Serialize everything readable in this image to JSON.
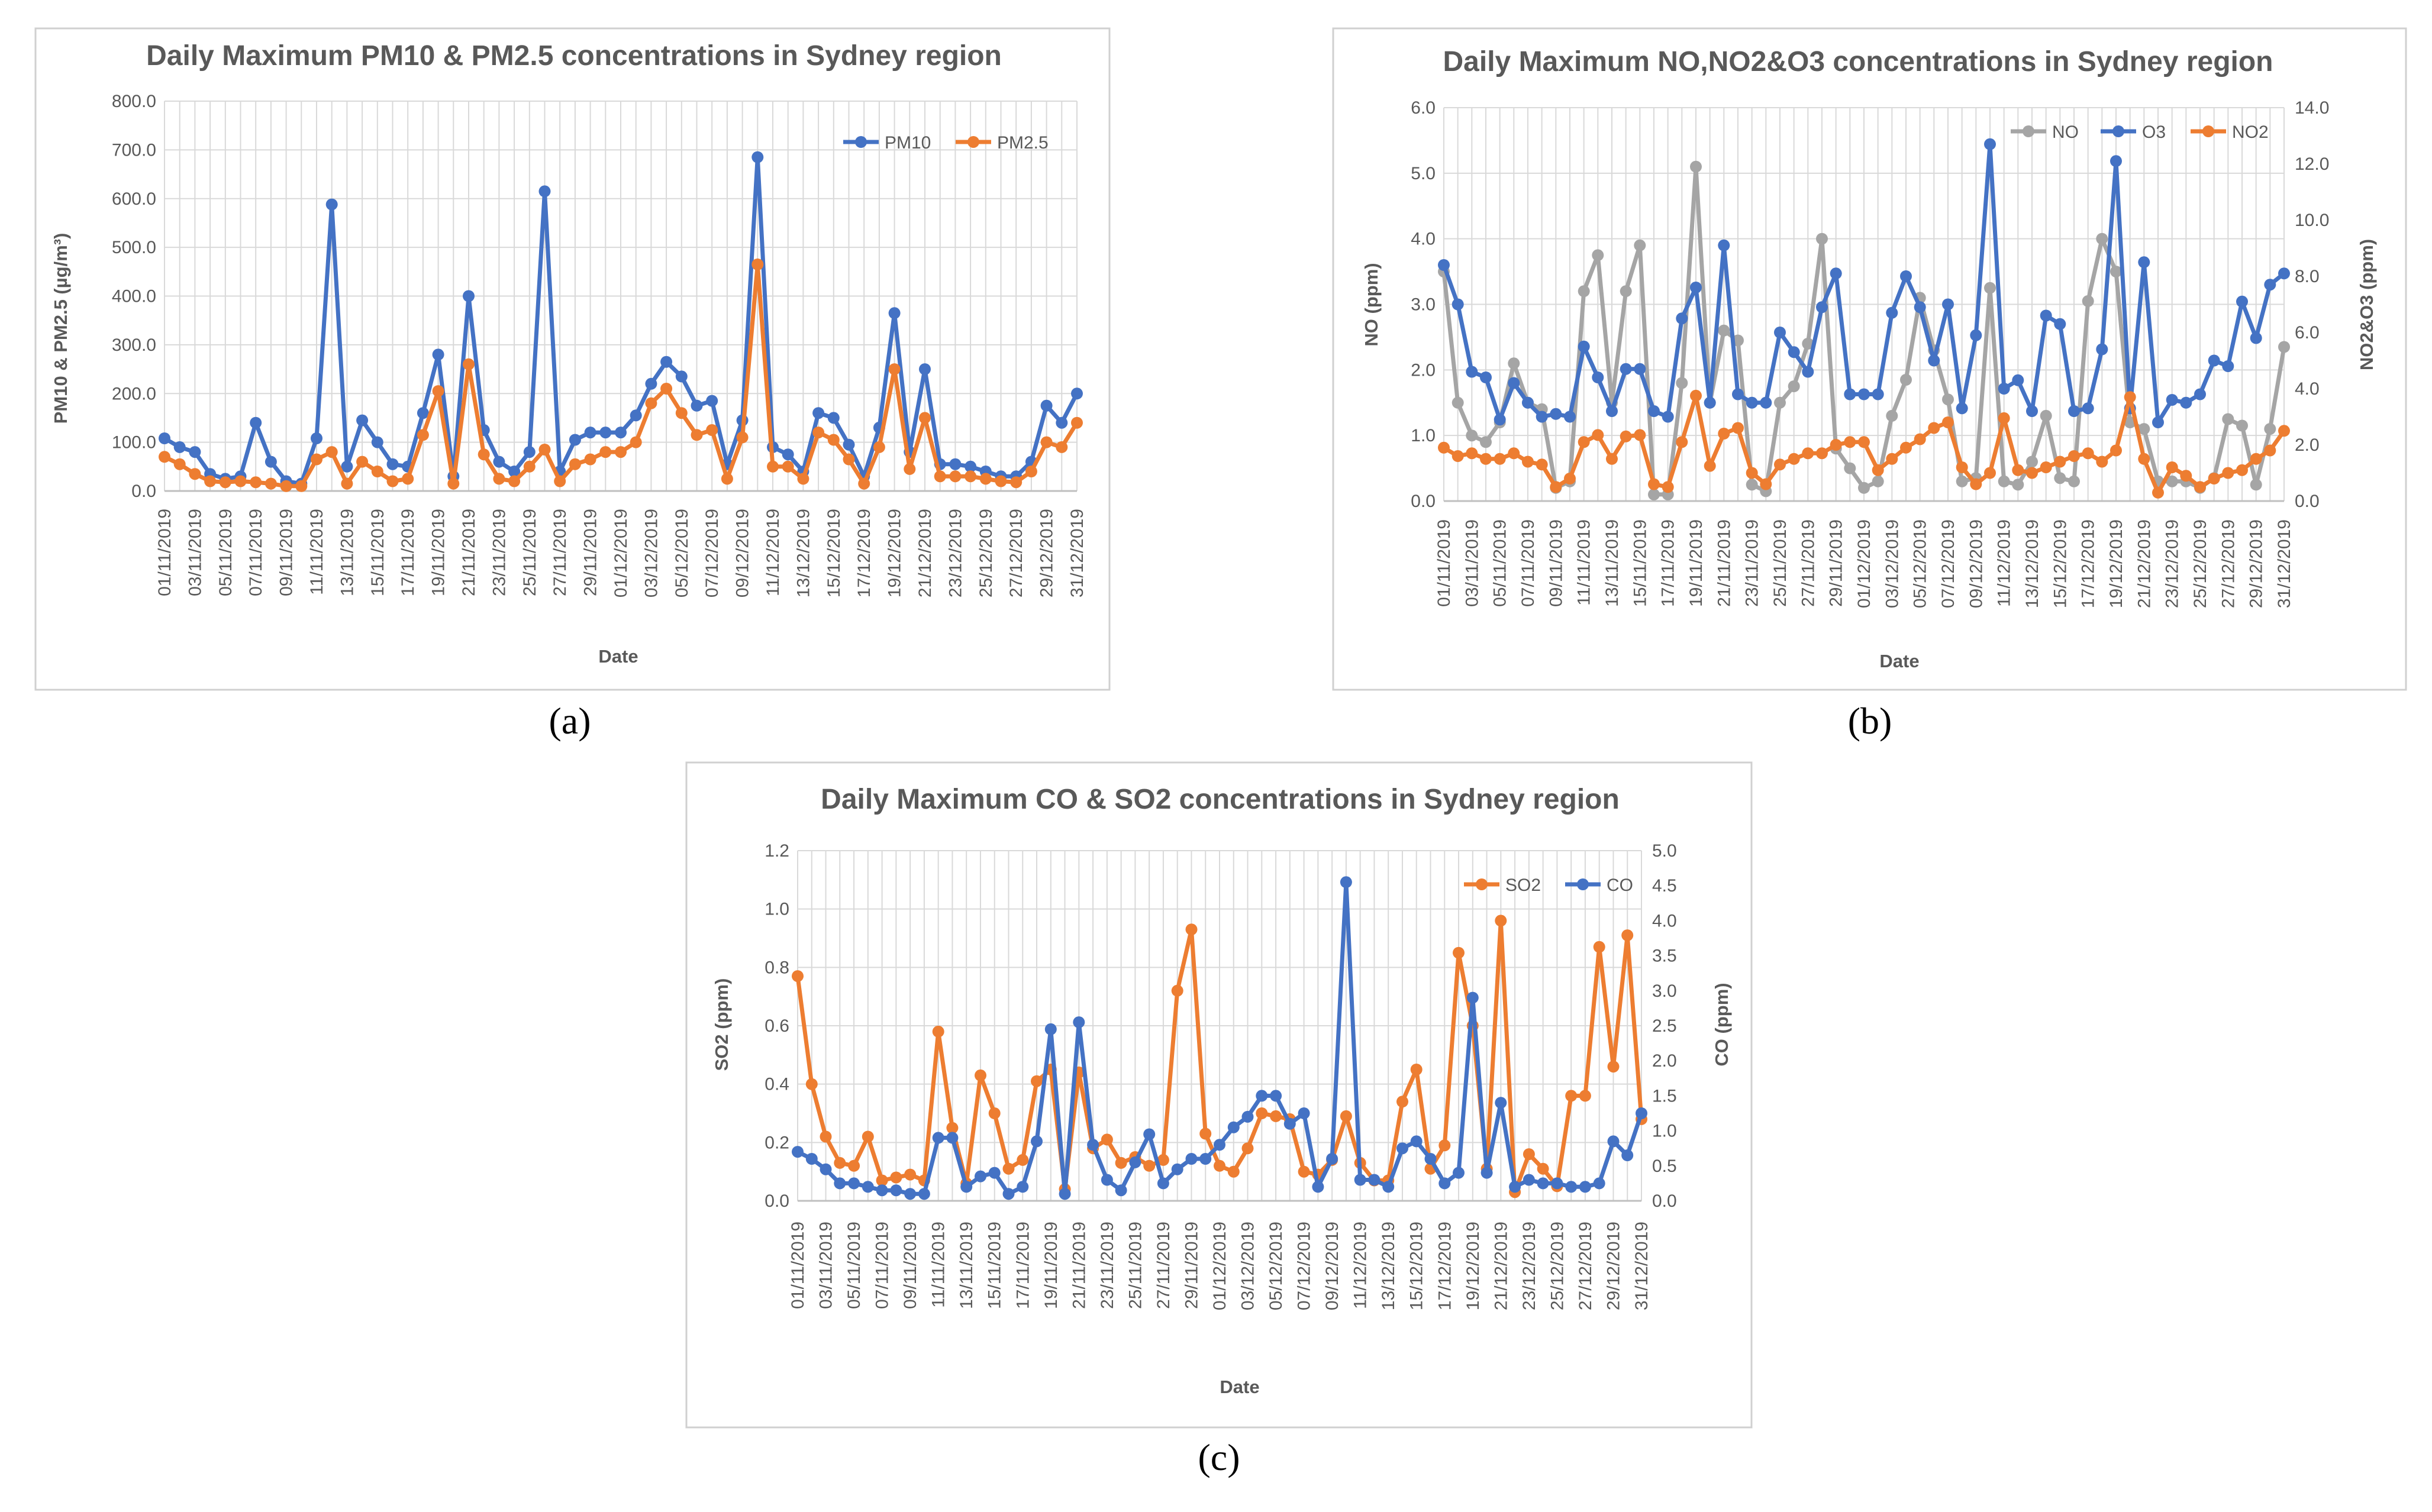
{
  "colors": {
    "blue": "#4472C4",
    "orange": "#ED7D31",
    "gray": "#A5A5A5",
    "grid": "#D9D9D9",
    "frame": "#D0D0D0",
    "text": "#595959"
  },
  "dates": [
    "01/11/2019",
    "02/11/2019",
    "03/11/2019",
    "04/11/2019",
    "05/11/2019",
    "06/11/2019",
    "07/11/2019",
    "08/11/2019",
    "09/11/2019",
    "10/11/2019",
    "11/11/2019",
    "12/11/2019",
    "13/11/2019",
    "14/11/2019",
    "15/11/2019",
    "16/11/2019",
    "17/11/2019",
    "18/11/2019",
    "19/11/2019",
    "20/11/2019",
    "21/11/2019",
    "22/11/2019",
    "23/11/2019",
    "24/11/2019",
    "25/11/2019",
    "26/11/2019",
    "27/11/2019",
    "28/11/2019",
    "29/11/2019",
    "30/11/2019",
    "01/12/2019",
    "02/12/2019",
    "03/12/2019",
    "04/12/2019",
    "05/12/2019",
    "06/12/2019",
    "07/12/2019",
    "08/12/2019",
    "09/12/2019",
    "10/12/2019",
    "11/12/2019",
    "12/12/2019",
    "13/12/2019",
    "14/12/2019",
    "15/12/2019",
    "16/12/2019",
    "17/12/2019",
    "18/12/2019",
    "19/12/2019",
    "20/12/2019",
    "21/12/2019",
    "22/12/2019",
    "23/12/2019",
    "24/12/2019",
    "25/12/2019",
    "26/12/2019",
    "27/12/2019",
    "28/12/2019",
    "29/12/2019",
    "30/12/2019",
    "31/12/2019"
  ],
  "chart_data": [
    {
      "panel_label": "(a)",
      "type": "line",
      "title": "Daily Maximum PM10 & PM2.5 concentrations in Sydney region",
      "xlabel": "Date",
      "ylabel": "PM10 & PM2.5 (µg/m³)",
      "ylim": [
        0,
        800
      ],
      "y_ticks": [
        "0.0",
        "100.0",
        "200.0",
        "300.0",
        "400.0",
        "500.0",
        "600.0",
        "700.0",
        "800.0"
      ],
      "legend": [
        "PM10",
        "PM2.5"
      ],
      "series": [
        {
          "name": "PM10",
          "color": "#4472C4",
          "axis": "left",
          "values": [
            108,
            90,
            80,
            35,
            25,
            30,
            140,
            60,
            20,
            15,
            108,
            588,
            50,
            145,
            100,
            55,
            50,
            160,
            280,
            30,
            400,
            125,
            60,
            40,
            80,
            615,
            40,
            105,
            120,
            120,
            120,
            155,
            220,
            265,
            235,
            175,
            185,
            55,
            145,
            685,
            90,
            75,
            40,
            160,
            150,
            95,
            30,
            130,
            365,
            80,
            250,
            55,
            55,
            50,
            40,
            30,
            30,
            60,
            175,
            140,
            200
          ]
        },
        {
          "name": "PM2.5",
          "color": "#ED7D31",
          "axis": "left",
          "values": [
            70,
            55,
            35,
            20,
            18,
            20,
            18,
            15,
            10,
            10,
            65,
            80,
            15,
            60,
            40,
            20,
            25,
            115,
            205,
            15,
            260,
            75,
            25,
            20,
            50,
            85,
            20,
            55,
            65,
            80,
            80,
            100,
            180,
            210,
            160,
            115,
            125,
            25,
            110,
            465,
            50,
            50,
            25,
            120,
            105,
            65,
            15,
            90,
            250,
            45,
            150,
            30,
            30,
            30,
            25,
            20,
            18,
            40,
            100,
            90,
            140
          ]
        }
      ]
    },
    {
      "panel_label": "(b)",
      "type": "line",
      "title": "Daily Maximum NO,NO2&O3 concentrations in Sydney region",
      "xlabel": "Date",
      "ylabel": "NO (ppm)",
      "ylabel_right": "NO2&O3 (ppm)",
      "ylim": [
        0,
        6
      ],
      "ylim_right": [
        0,
        14
      ],
      "y_ticks": [
        "0.0",
        "1.0",
        "2.0",
        "3.0",
        "4.0",
        "5.0",
        "6.0"
      ],
      "y_ticks_right": [
        "0.0",
        "2.0",
        "4.0",
        "6.0",
        "8.0",
        "10.0",
        "12.0",
        "14.0"
      ],
      "legend": [
        "NO",
        "O3",
        "NO2"
      ],
      "series": [
        {
          "name": "NO",
          "color": "#A5A5A5",
          "axis": "left",
          "values": [
            3.5,
            1.5,
            1.0,
            0.9,
            1.2,
            2.1,
            1.5,
            1.4,
            0.2,
            0.3,
            3.2,
            3.75,
            1.5,
            3.2,
            3.9,
            0.1,
            0.1,
            1.8,
            5.1,
            1.5,
            2.6,
            2.45,
            0.25,
            0.15,
            1.5,
            1.75,
            2.4,
            4.0,
            0.8,
            0.5,
            0.2,
            0.3,
            1.3,
            1.85,
            3.1,
            2.3,
            1.55,
            0.3,
            0.35,
            3.25,
            0.3,
            0.25,
            0.6,
            1.3,
            0.35,
            0.3,
            3.05,
            4.0,
            3.5,
            1.2,
            1.1,
            0.3,
            0.3,
            0.3,
            0.2,
            0.35,
            1.25,
            1.15,
            0.25,
            1.1,
            2.35
          ]
        },
        {
          "name": "O3",
          "color": "#4472C4",
          "axis": "right",
          "values": [
            8.4,
            7.0,
            4.6,
            4.4,
            2.9,
            4.2,
            3.5,
            3.0,
            3.1,
            3.0,
            5.5,
            4.4,
            3.2,
            4.7,
            4.7,
            3.2,
            3.0,
            6.5,
            7.6,
            3.5,
            9.1,
            3.8,
            3.5,
            3.5,
            6.0,
            5.3,
            4.6,
            6.9,
            8.1,
            3.8,
            3.8,
            3.8,
            6.7,
            8.0,
            6.9,
            5.0,
            7.0,
            3.3,
            5.9,
            12.7,
            4.0,
            4.3,
            3.2,
            6.6,
            6.3,
            3.2,
            3.3,
            5.4,
            12.1,
            3.3,
            8.5,
            2.8,
            3.6,
            3.5,
            3.8,
            5.0,
            4.8,
            7.1,
            5.8,
            7.7,
            8.1
          ]
        },
        {
          "name": "NO2",
          "color": "#ED7D31",
          "axis": "right",
          "values": [
            1.9,
            1.6,
            1.7,
            1.5,
            1.5,
            1.7,
            1.4,
            1.3,
            0.5,
            0.8,
            2.1,
            2.35,
            1.5,
            2.3,
            2.35,
            0.6,
            0.5,
            2.1,
            3.75,
            1.25,
            2.4,
            2.6,
            1.0,
            0.6,
            1.3,
            1.5,
            1.7,
            1.7,
            2.0,
            2.1,
            2.1,
            1.1,
            1.5,
            1.9,
            2.2,
            2.6,
            2.8,
            1.2,
            0.6,
            1.0,
            2.95,
            1.1,
            1.0,
            1.2,
            1.4,
            1.6,
            1.7,
            1.4,
            1.8,
            3.7,
            1.5,
            0.3,
            1.2,
            0.9,
            0.5,
            0.8,
            1.0,
            1.1,
            1.5,
            1.8,
            2.5
          ]
        }
      ]
    },
    {
      "panel_label": "(c)",
      "type": "line",
      "title": "Daily Maximum CO & SO2 concentrations in Sydney region",
      "xlabel": "Date",
      "ylabel": "SO2 (ppm)",
      "ylabel_right": "CO (ppm)",
      "ylim": [
        0,
        1.2
      ],
      "ylim_right": [
        0,
        5
      ],
      "y_ticks": [
        "0.0",
        "0.2",
        "0.4",
        "0.6",
        "0.8",
        "1.0",
        "1.2"
      ],
      "y_ticks_right": [
        "0.0",
        "0.5",
        "1.0",
        "1.5",
        "2.0",
        "2.5",
        "3.0",
        "3.5",
        "4.0",
        "4.5",
        "5.0"
      ],
      "legend": [
        "SO2",
        "CO"
      ],
      "series": [
        {
          "name": "SO2",
          "color": "#ED7D31",
          "axis": "left",
          "values": [
            0.77,
            0.4,
            0.22,
            0.13,
            0.12,
            0.22,
            0.07,
            0.08,
            0.09,
            0.07,
            0.58,
            0.25,
            0.06,
            0.43,
            0.3,
            0.11,
            0.14,
            0.41,
            0.45,
            0.04,
            0.44,
            0.18,
            0.21,
            0.13,
            0.15,
            0.12,
            0.14,
            0.72,
            0.93,
            0.23,
            0.12,
            0.1,
            0.18,
            0.3,
            0.29,
            0.28,
            0.1,
            0.09,
            0.14,
            0.29,
            0.13,
            0.07,
            0.07,
            0.34,
            0.45,
            0.11,
            0.19,
            0.85,
            0.6,
            0.11,
            0.96,
            0.03,
            0.16,
            0.11,
            0.05,
            0.36,
            0.36,
            0.87,
            0.46,
            0.91,
            0.28
          ]
        },
        {
          "name": "CO",
          "color": "#4472C4",
          "axis": "right",
          "values": [
            0.7,
            0.6,
            0.45,
            0.25,
            0.25,
            0.2,
            0.15,
            0.15,
            0.1,
            0.1,
            0.9,
            0.9,
            0.2,
            0.35,
            0.4,
            0.1,
            0.2,
            0.85,
            2.45,
            0.1,
            2.55,
            0.8,
            0.3,
            0.15,
            0.55,
            0.95,
            0.25,
            0.45,
            0.6,
            0.6,
            0.8,
            1.05,
            1.2,
            1.5,
            1.5,
            1.1,
            1.25,
            0.2,
            0.6,
            4.55,
            0.3,
            0.3,
            0.2,
            0.75,
            0.85,
            0.6,
            0.25,
            0.4,
            2.9,
            0.4,
            1.4,
            0.2,
            0.3,
            0.25,
            0.25,
            0.2,
            0.2,
            0.25,
            0.85,
            0.65,
            1.25
          ]
        }
      ]
    }
  ]
}
